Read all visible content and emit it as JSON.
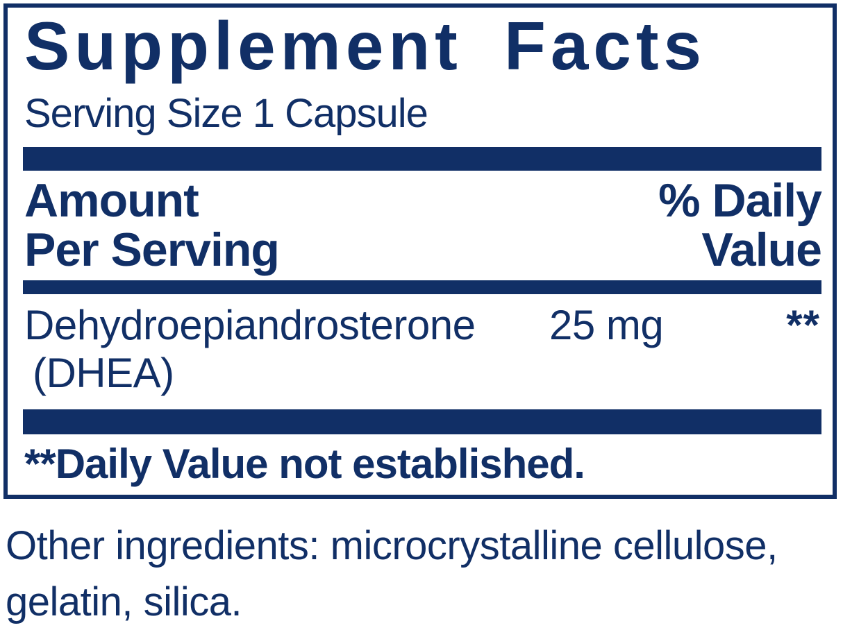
{
  "colors": {
    "navy": "#112F66",
    "background": "#FFFFFF"
  },
  "panel": {
    "title": "Supplement Facts",
    "serving_size": "Serving Size 1 Capsule",
    "header": {
      "amount_label": "Amount\nPer Serving",
      "daily_value_label": "% Daily\nValue"
    },
    "rows": [
      {
        "name": "Dehydroepiandrosterone",
        "name_paren": "(DHEA)",
        "amount": "25 mg",
        "daily_value": "**"
      }
    ],
    "footnote": "**Daily Value not established."
  },
  "other_ingredients": "Other ingredients: microcrystalline cellulose,\ngelatin, silica."
}
